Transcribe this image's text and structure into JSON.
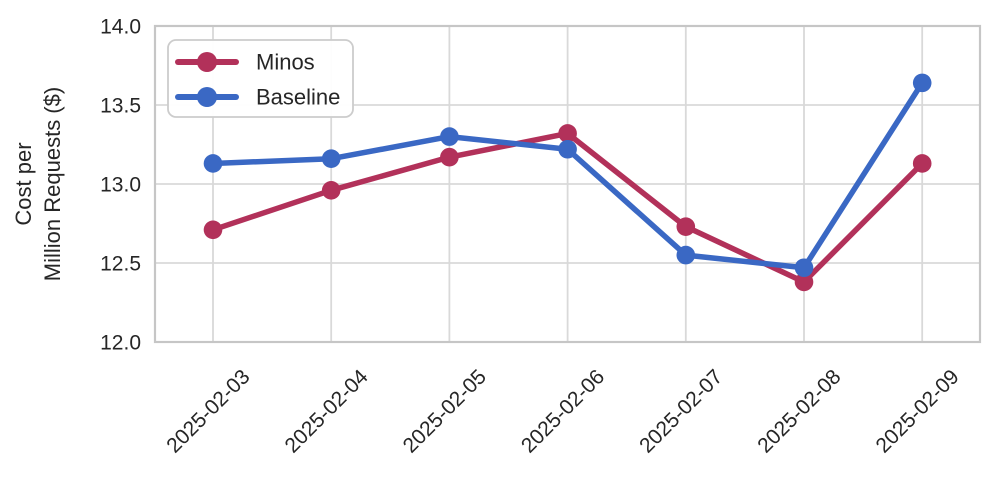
{
  "chart_data": {
    "type": "line",
    "title": "",
    "xlabel": "",
    "ylabel": "Cost per Million Requests ($)",
    "ylabel_lines": [
      "Cost per",
      "Million Requests ($)"
    ],
    "x_categories": [
      "2025-02-03",
      "2025-02-04",
      "2025-02-05",
      "2025-02-06",
      "2025-02-07",
      "2025-02-08",
      "2025-02-09"
    ],
    "series": [
      {
        "name": "Minos",
        "color": "#b2315a",
        "marker": "circle",
        "values": [
          12.71,
          12.96,
          13.17,
          13.32,
          12.73,
          12.38,
          13.13
        ]
      },
      {
        "name": "Baseline",
        "color": "#3a68c4",
        "marker": "circle",
        "values": [
          13.13,
          13.16,
          13.3,
          13.22,
          12.55,
          12.47,
          13.64
        ]
      }
    ],
    "ylim": [
      12.0,
      14.0
    ],
    "y_ticks": [
      12.0,
      12.5,
      13.0,
      13.5,
      14.0
    ],
    "y_tick_labels": [
      "12.0",
      "12.5",
      "13.0",
      "13.5",
      "14.0"
    ],
    "grid": true,
    "legend_position": "upper left",
    "colors": {
      "grid": "#d9d9d9",
      "spine": "#c6c6c6",
      "text": "#262626",
      "legend_border": "#cccccc",
      "background": "#ffffff"
    }
  }
}
